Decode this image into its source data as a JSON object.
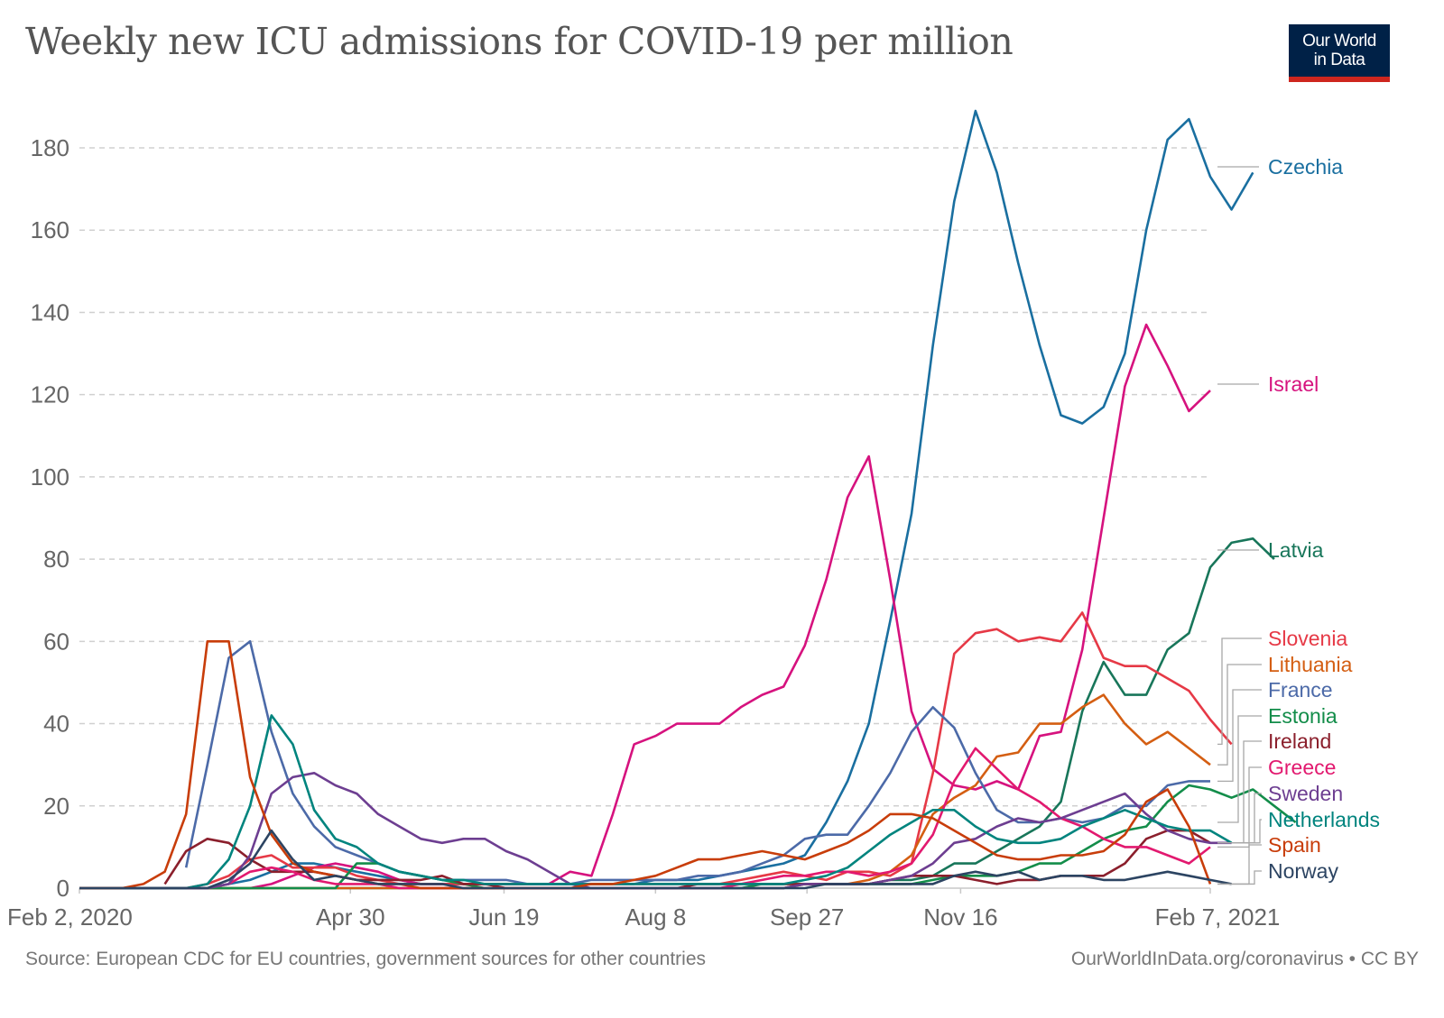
{
  "header": {
    "title": "Weekly new ICU admissions for COVID-19 per million",
    "logo_line1": "Our World",
    "logo_line2": "in Data"
  },
  "footer": {
    "source": "Source: European CDC for EU countries, government sources for other countries",
    "credit": "OurWorldInData.org/coronavirus • CC BY"
  },
  "chart_data": {
    "type": "line",
    "title": "Weekly new ICU admissions for COVID-19 per million",
    "xlabel": "",
    "ylabel": "",
    "ylim": [
      0,
      190
    ],
    "yticks": [
      0,
      20,
      40,
      60,
      80,
      100,
      120,
      140,
      160,
      180
    ],
    "xticks": [
      {
        "label": "Feb 2, 2020",
        "week": 0
      },
      {
        "label": "Apr 30",
        "week": 12.7
      },
      {
        "label": "Jun 19",
        "week": 19.9
      },
      {
        "label": "Aug 8",
        "week": 27
      },
      {
        "label": "Sep 27",
        "week": 34.1
      },
      {
        "label": "Nov 16",
        "week": 41.3
      },
      {
        "label": "Feb 7, 2021",
        "week": 53
      }
    ],
    "grid": "horizontal-dashed",
    "legend": "right-end-labels",
    "x_unit": "weeks since Feb 2, 2020",
    "series": [
      {
        "name": "Czechia",
        "color": "#1a6fa0",
        "start": 0,
        "values": [
          0,
          0,
          0,
          0,
          0,
          0,
          0,
          1,
          2,
          4,
          6,
          6,
          5,
          4,
          3,
          2,
          1,
          1,
          1,
          1,
          1,
          1,
          1,
          1,
          1,
          1,
          1,
          2,
          2,
          2,
          3,
          4,
          5,
          6,
          8,
          16,
          26,
          40,
          65,
          91,
          132,
          167,
          189,
          174,
          152,
          132,
          115,
          113,
          117,
          130,
          160,
          182,
          187,
          173,
          165,
          174
        ]
      },
      {
        "name": "Israel",
        "color": "#d6127e",
        "start": 0,
        "values": [
          0,
          0,
          0,
          0,
          0,
          0,
          1,
          3,
          5,
          6,
          5,
          4,
          2,
          1,
          1,
          1,
          1,
          1,
          1,
          1,
          4,
          3,
          18,
          35,
          37,
          40,
          40,
          40,
          44,
          47,
          49,
          59,
          75,
          95,
          105,
          75,
          43,
          29,
          25,
          24,
          26,
          24,
          37,
          38,
          58,
          90,
          122,
          137,
          127,
          116,
          121
        ]
      },
      {
        "name": "Latvia",
        "color": "#18765a",
        "start": 0,
        "values": [
          0,
          0,
          0,
          0,
          0,
          0,
          0,
          0,
          0,
          0,
          0,
          0,
          0,
          0,
          0,
          0,
          0,
          0,
          0,
          0,
          0,
          0,
          0,
          0,
          0,
          0,
          0,
          0,
          0,
          0,
          0,
          0,
          0,
          0,
          1,
          1,
          1,
          1,
          2,
          2,
          3,
          6,
          6,
          9,
          12,
          15,
          21,
          43,
          55,
          47,
          47,
          58,
          62,
          78,
          84,
          85,
          80
        ]
      },
      {
        "name": "Slovenia",
        "color": "#e63946",
        "start": 0,
        "values": [
          0,
          0,
          0,
          0,
          0,
          0,
          1,
          3,
          7,
          8,
          5,
          5,
          5,
          3,
          2,
          1,
          1,
          1,
          1,
          1,
          1,
          1,
          1,
          1,
          1,
          1,
          1,
          1,
          1,
          1,
          1,
          2,
          3,
          4,
          3,
          2,
          4,
          4,
          3,
          6,
          28,
          57,
          62,
          63,
          60,
          61,
          60,
          67,
          56,
          54,
          54,
          51,
          48,
          41,
          35
        ]
      },
      {
        "name": "Lithuania",
        "color": "#d45e12",
        "start": 0,
        "values": [
          0,
          0,
          0,
          0,
          0,
          0,
          0,
          0,
          0,
          0,
          0,
          0,
          0,
          0,
          0,
          0,
          0,
          0,
          0,
          0,
          0,
          0,
          0,
          0,
          0,
          0,
          0,
          0,
          0,
          0,
          0,
          0,
          0,
          0,
          1,
          1,
          1,
          2,
          4,
          8,
          18,
          22,
          25,
          32,
          33,
          40,
          40,
          44,
          47,
          40,
          35,
          38,
          34,
          30
        ]
      },
      {
        "name": "France",
        "color": "#4c6aa8",
        "start": 6,
        "values": [
          5,
          30,
          56,
          60,
          38,
          23,
          15,
          10,
          8,
          6,
          4,
          3,
          2,
          2,
          2,
          2,
          1,
          1,
          1,
          2,
          2,
          2,
          2,
          2,
          3,
          3,
          4,
          6,
          8,
          12,
          13,
          13,
          20,
          28,
          38,
          44,
          39,
          28,
          19,
          16,
          16,
          17,
          16,
          17,
          20,
          20,
          25,
          26,
          26
        ]
      },
      {
        "name": "Estonia",
        "color": "#138d4a",
        "start": 0,
        "values": [
          0,
          0,
          0,
          0,
          0,
          0,
          0,
          0,
          0,
          0,
          0,
          0,
          0,
          6,
          6,
          4,
          3,
          2,
          1,
          0,
          0,
          0,
          0,
          0,
          0,
          0,
          0,
          0,
          0,
          0,
          0,
          0,
          1,
          1,
          1,
          1,
          1,
          1,
          1,
          1,
          2,
          3,
          3,
          3,
          4,
          6,
          6,
          9,
          12,
          14,
          15,
          21,
          25,
          24,
          22,
          24,
          20,
          16
        ]
      },
      {
        "name": "Ireland",
        "color": "#8b1f2c",
        "start": 9,
        "values": [
          1,
          9,
          12,
          11,
          7,
          4,
          4,
          4,
          3,
          2,
          2,
          2,
          2,
          3,
          1,
          1,
          0,
          0,
          0,
          0,
          0,
          0,
          0,
          0,
          0,
          1,
          1,
          1,
          1,
          1,
          1,
          1,
          1,
          1,
          2,
          3,
          3,
          3,
          2,
          1,
          2,
          2,
          3,
          3,
          3,
          6,
          12,
          14,
          14,
          11
        ]
      },
      {
        "name": "Greece",
        "color": "#e2196f",
        "start": 0,
        "values": [
          0,
          0,
          0,
          0,
          0,
          0,
          0,
          1,
          4,
          5,
          4,
          2,
          1,
          1,
          1,
          0,
          0,
          0,
          0,
          0,
          0,
          0,
          0,
          0,
          0,
          0,
          0,
          0,
          0,
          0,
          0,
          1,
          2,
          3,
          3,
          4,
          4,
          3,
          4,
          6,
          13,
          26,
          34,
          29,
          24,
          21,
          17,
          15,
          12,
          10,
          10,
          8,
          6,
          10
        ]
      },
      {
        "name": "Sweden",
        "color": "#6d3e91",
        "start": 0,
        "values": [
          0,
          0,
          0,
          0,
          0,
          0,
          0,
          1,
          8,
          23,
          27,
          28,
          25,
          23,
          18,
          15,
          12,
          11,
          12,
          12,
          9,
          7,
          4,
          1,
          0,
          0,
          0,
          0,
          0,
          0,
          0,
          0,
          0,
          0,
          1,
          1,
          1,
          1,
          2,
          3,
          6,
          11,
          12,
          15,
          17,
          16,
          17,
          19,
          21,
          23,
          18,
          14,
          12,
          11,
          11
        ]
      },
      {
        "name": "Netherlands",
        "color": "#00847e",
        "start": 0,
        "values": [
          0,
          0,
          0,
          0,
          0,
          0,
          1,
          7,
          20,
          42,
          35,
          19,
          12,
          10,
          6,
          4,
          3,
          2,
          2,
          1,
          1,
          1,
          1,
          1,
          1,
          1,
          1,
          1,
          1,
          1,
          1,
          1,
          1,
          1,
          2,
          3,
          5,
          9,
          13,
          16,
          19,
          19,
          15,
          12,
          11,
          11,
          12,
          15,
          17,
          19,
          17,
          15,
          14,
          14,
          11
        ]
      },
      {
        "name": "Spain",
        "color": "#c83d0a",
        "start": 0,
        "values": [
          0,
          0,
          0,
          1,
          4,
          18,
          60,
          60,
          27,
          13,
          6,
          4,
          3,
          2,
          1,
          1,
          0,
          0,
          0,
          0,
          0,
          0,
          0,
          0,
          1,
          1,
          2,
          3,
          5,
          7,
          7,
          8,
          9,
          8,
          7,
          9,
          11,
          14,
          18,
          18,
          17,
          14,
          11,
          8,
          7,
          7,
          8,
          8,
          9,
          13,
          21,
          24,
          15,
          1
        ]
      },
      {
        "name": "Norway",
        "color": "#2c4462",
        "start": 0,
        "values": [
          0,
          0,
          0,
          0,
          0,
          0,
          0,
          2,
          6,
          14,
          7,
          2,
          3,
          2,
          1,
          1,
          1,
          1,
          0,
          0,
          0,
          0,
          0,
          0,
          0,
          0,
          0,
          0,
          0,
          0,
          0,
          0,
          0,
          0,
          0,
          1,
          1,
          1,
          1,
          1,
          1,
          3,
          4,
          3,
          4,
          2,
          3,
          3,
          2,
          2,
          3,
          4,
          3,
          2,
          1
        ]
      }
    ]
  }
}
